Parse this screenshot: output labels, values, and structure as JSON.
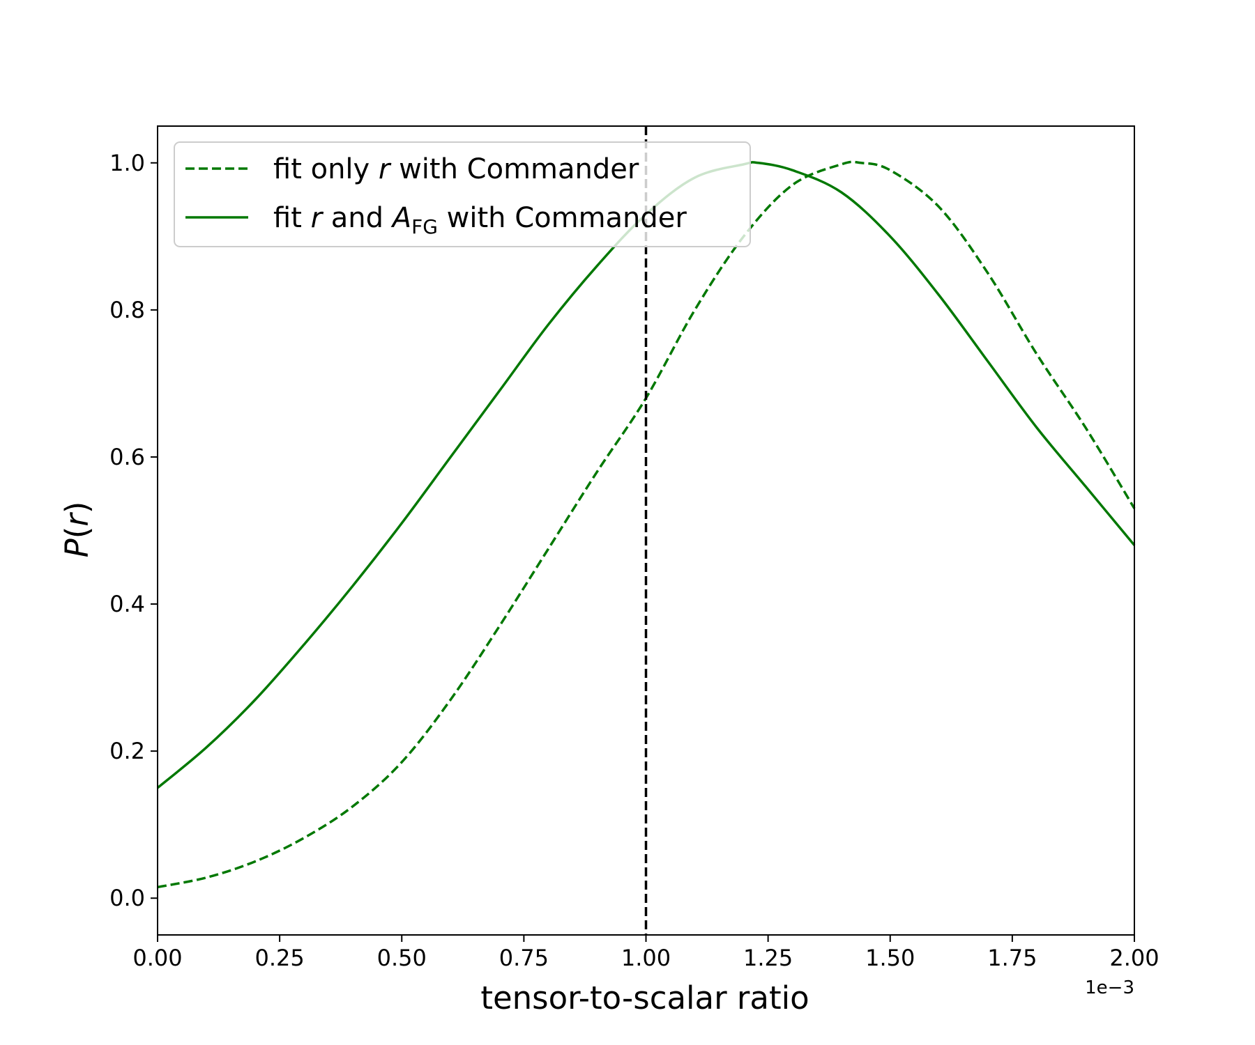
{
  "chart_data": {
    "type": "line",
    "xlabel": "tensor-to-scalar ratio",
    "ylabel_base": "P",
    "ylabel_var": "r",
    "x_offset_label": "1e−3",
    "xlim": [
      0.0,
      2.0
    ],
    "ylim": [
      -0.05,
      1.05
    ],
    "x_ticks": [
      0.0,
      0.25,
      0.5,
      0.75,
      1.0,
      1.25,
      1.5,
      1.75,
      2.0
    ],
    "x_tick_labels": [
      "0.00",
      "0.25",
      "0.50",
      "0.75",
      "1.00",
      "1.25",
      "1.50",
      "1.75",
      "2.00"
    ],
    "y_ticks": [
      0.0,
      0.2,
      0.4,
      0.6,
      0.8,
      1.0
    ],
    "y_tick_labels": [
      "0.0",
      "0.2",
      "0.4",
      "0.6",
      "0.8",
      "1.0"
    ],
    "grid": false,
    "legend_position": "upper-left",
    "reference_line": {
      "x": 1.0,
      "color": "#000000",
      "style": "dashed"
    },
    "series": [
      {
        "legend_prefix": "fit only ",
        "legend_var": "r",
        "legend_suffix": " with Commander",
        "color": "#007800",
        "style": "dashed",
        "x": [
          0.0,
          0.1,
          0.2,
          0.3,
          0.4,
          0.5,
          0.6,
          0.7,
          0.8,
          0.9,
          1.0,
          1.1,
          1.2,
          1.3,
          1.4,
          1.44,
          1.5,
          1.6,
          1.7,
          1.8,
          1.9,
          2.0
        ],
        "y": [
          0.015,
          0.028,
          0.05,
          0.082,
          0.125,
          0.185,
          0.27,
          0.37,
          0.475,
          0.58,
          0.68,
          0.8,
          0.9,
          0.97,
          0.998,
          1.0,
          0.99,
          0.94,
          0.85,
          0.74,
          0.64,
          0.53
        ]
      },
      {
        "legend_prefix": "fit ",
        "legend_var": "r",
        "legend_mid": " and ",
        "legend_var2": "A",
        "legend_sub": "FG",
        "legend_suffix": " with Commander",
        "color": "#007800",
        "style": "solid",
        "x": [
          0.0,
          0.1,
          0.2,
          0.3,
          0.4,
          0.5,
          0.6,
          0.7,
          0.8,
          0.9,
          1.0,
          1.1,
          1.2,
          1.23,
          1.3,
          1.4,
          1.5,
          1.6,
          1.7,
          1.8,
          1.9,
          2.0
        ],
        "y": [
          0.15,
          0.205,
          0.27,
          0.345,
          0.425,
          0.51,
          0.6,
          0.69,
          0.78,
          0.86,
          0.93,
          0.98,
          0.998,
          1.0,
          0.99,
          0.96,
          0.9,
          0.82,
          0.73,
          0.64,
          0.56,
          0.48
        ]
      }
    ]
  }
}
